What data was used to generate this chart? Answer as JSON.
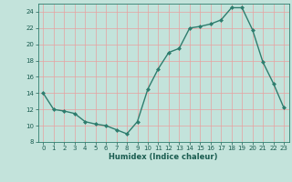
{
  "x": [
    0,
    1,
    2,
    3,
    4,
    5,
    6,
    7,
    8,
    9,
    10,
    11,
    12,
    13,
    14,
    15,
    16,
    17,
    18,
    19,
    20,
    21,
    22,
    23
  ],
  "y": [
    14,
    12,
    11.8,
    11.5,
    10.5,
    10.2,
    10.0,
    9.5,
    9.0,
    10.5,
    14.5,
    17.0,
    19.0,
    19.5,
    22.0,
    22.2,
    22.5,
    23.0,
    24.5,
    24.5,
    21.8,
    17.8,
    15.2,
    12.2
  ],
  "line_color": "#2e7d6e",
  "marker": "D",
  "marker_size": 2.0,
  "bg_color": "#c3e3db",
  "grid_color": "#e8a0a0",
  "xlabel": "Humidex (Indice chaleur)",
  "xlim": [
    -0.5,
    23.5
  ],
  "ylim": [
    8,
    25
  ],
  "yticks": [
    8,
    10,
    12,
    14,
    16,
    18,
    20,
    22,
    24
  ],
  "xticks": [
    0,
    1,
    2,
    3,
    4,
    5,
    6,
    7,
    8,
    9,
    10,
    11,
    12,
    13,
    14,
    15,
    16,
    17,
    18,
    19,
    20,
    21,
    22,
    23
  ]
}
